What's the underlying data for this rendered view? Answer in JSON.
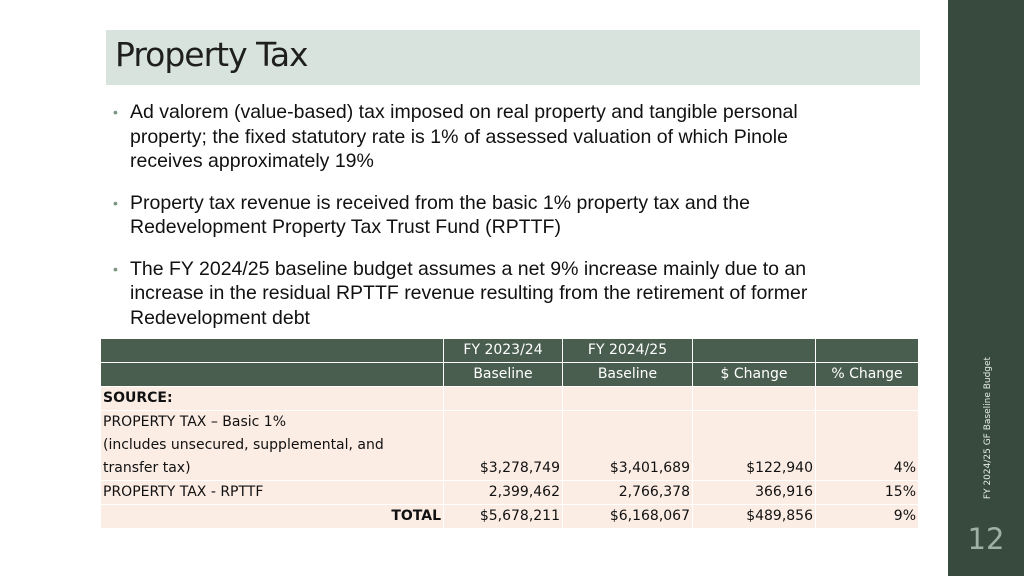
{
  "slide": {
    "title": "Property Tax",
    "side_label": "FY 2024/25 GF Baseline Budget",
    "slide_number": "12",
    "accent_color": "#384a3e"
  },
  "bullets": [
    "Ad valorem (value-based) tax imposed on real property and tangible personal property; the fixed statutory rate is 1% of assessed valuation of which Pinole receives approximately 19%",
    "Property tax revenue is received from the basic 1% property tax and the Redevelopment Property Tax Trust Fund (RPTTF)",
    "The FY 2024/25 baseline budget assumes a net 9% increase mainly due to an increase in the residual RPTTF revenue resulting from the retirement of former Redevelopment debt"
  ],
  "table": {
    "headers_row1": [
      "",
      "FY 2023/24",
      "FY 2024/25",
      "",
      ""
    ],
    "headers_row2": [
      "",
      "Baseline",
      "Baseline",
      "$ Change",
      "% Change"
    ],
    "source_label": "SOURCE:",
    "rows": [
      {
        "label_lines": [
          "PROPERTY TAX – Basic 1%",
          "(includes unsecured, supplemental, and",
          "transfer tax)"
        ],
        "fy2324": "$3,278,749",
        "fy2425": "$3,401,689",
        "change": "$122,940",
        "pct": "4%"
      },
      {
        "label": "PROPERTY TAX - RPTTF",
        "fy2324": "2,399,462",
        "fy2425": "2,766,378",
        "change": "366,916",
        "pct": "15%"
      }
    ],
    "total": {
      "label": "TOTAL",
      "fy2324": "$5,678,211",
      "fy2425": "$6,168,067",
      "change": "$489,856",
      "pct": "9%"
    }
  }
}
